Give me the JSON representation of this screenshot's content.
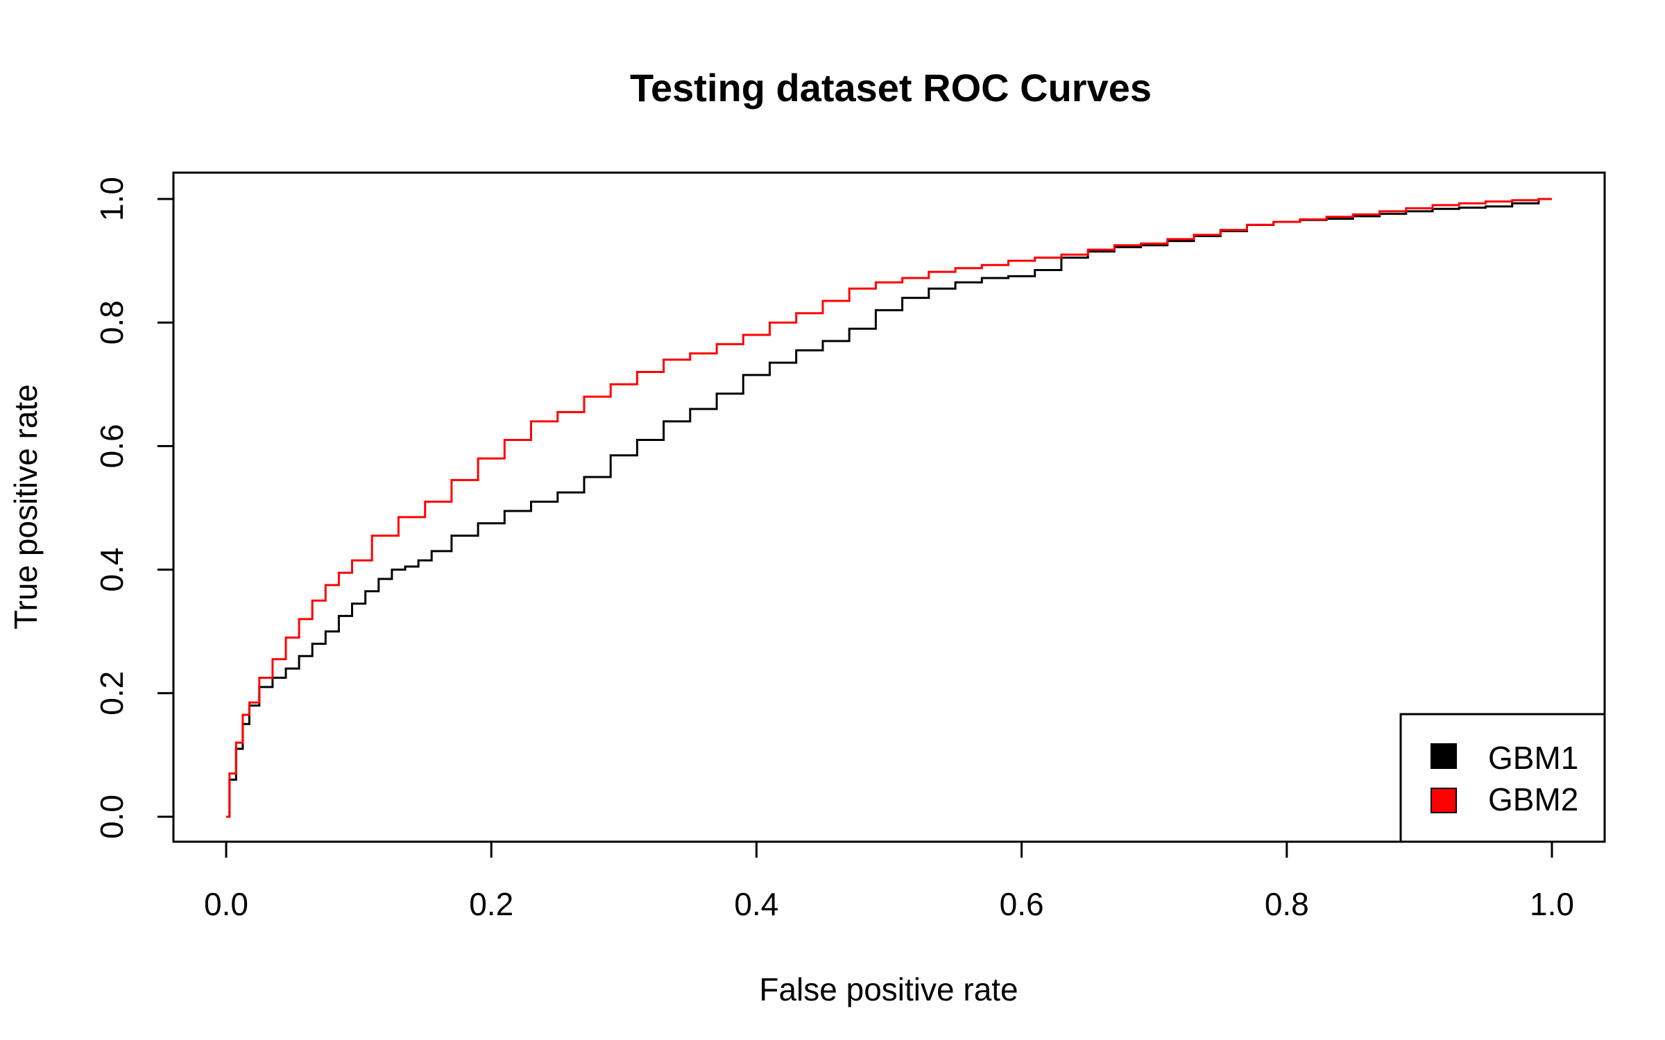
{
  "chart_data": {
    "type": "line",
    "title": "Testing dataset ROC Curves",
    "xlabel": "False positive rate",
    "ylabel": "True positive rate",
    "xlim": [
      0,
      1
    ],
    "ylim": [
      0,
      1
    ],
    "x_ticks": [
      "0.0",
      "0.2",
      "0.4",
      "0.6",
      "0.8",
      "1.0"
    ],
    "y_ticks": [
      "0.0",
      "0.2",
      "0.4",
      "0.6",
      "0.8",
      "1.0"
    ],
    "grid": false,
    "legend_position": "bottom-right",
    "series": [
      {
        "name": "GBM1",
        "color": "#000000",
        "x": [
          0,
          0.005,
          0.01,
          0.015,
          0.02,
          0.03,
          0.04,
          0.05,
          0.06,
          0.07,
          0.08,
          0.09,
          0.1,
          0.11,
          0.12,
          0.13,
          0.14,
          0.15,
          0.16,
          0.18,
          0.2,
          0.22,
          0.24,
          0.26,
          0.28,
          0.3,
          0.32,
          0.34,
          0.36,
          0.38,
          0.4,
          0.42,
          0.44,
          0.46,
          0.48,
          0.5,
          0.52,
          0.54,
          0.56,
          0.58,
          0.6,
          0.62,
          0.64,
          0.66,
          0.68,
          0.7,
          0.72,
          0.74,
          0.76,
          0.78,
          0.8,
          0.82,
          0.84,
          0.86,
          0.88,
          0.9,
          0.92,
          0.94,
          0.96,
          0.98,
          1.0
        ],
        "y": [
          0,
          0.06,
          0.11,
          0.15,
          0.18,
          0.21,
          0.225,
          0.24,
          0.26,
          0.28,
          0.3,
          0.325,
          0.345,
          0.365,
          0.385,
          0.4,
          0.405,
          0.415,
          0.43,
          0.455,
          0.475,
          0.495,
          0.51,
          0.525,
          0.55,
          0.585,
          0.61,
          0.64,
          0.66,
          0.685,
          0.715,
          0.735,
          0.755,
          0.77,
          0.79,
          0.82,
          0.84,
          0.855,
          0.865,
          0.872,
          0.875,
          0.885,
          0.905,
          0.915,
          0.922,
          0.925,
          0.932,
          0.94,
          0.948,
          0.958,
          0.963,
          0.966,
          0.968,
          0.972,
          0.976,
          0.98,
          0.984,
          0.986,
          0.988,
          0.993,
          1.0
        ]
      },
      {
        "name": "GBM2",
        "color": "#ff0000",
        "x": [
          0,
          0.005,
          0.01,
          0.015,
          0.02,
          0.03,
          0.04,
          0.05,
          0.06,
          0.07,
          0.08,
          0.09,
          0.1,
          0.12,
          0.14,
          0.16,
          0.18,
          0.2,
          0.22,
          0.24,
          0.26,
          0.28,
          0.3,
          0.32,
          0.34,
          0.36,
          0.38,
          0.4,
          0.42,
          0.44,
          0.46,
          0.48,
          0.5,
          0.52,
          0.54,
          0.56,
          0.58,
          0.6,
          0.62,
          0.64,
          0.66,
          0.68,
          0.7,
          0.72,
          0.74,
          0.76,
          0.78,
          0.8,
          0.82,
          0.84,
          0.86,
          0.88,
          0.9,
          0.92,
          0.94,
          0.96,
          0.98,
          1.0
        ],
        "y": [
          0,
          0.07,
          0.12,
          0.165,
          0.185,
          0.225,
          0.255,
          0.29,
          0.32,
          0.35,
          0.375,
          0.395,
          0.415,
          0.455,
          0.485,
          0.51,
          0.545,
          0.58,
          0.61,
          0.64,
          0.655,
          0.68,
          0.7,
          0.72,
          0.74,
          0.75,
          0.765,
          0.78,
          0.8,
          0.815,
          0.835,
          0.855,
          0.865,
          0.872,
          0.882,
          0.888,
          0.893,
          0.9,
          0.905,
          0.91,
          0.918,
          0.925,
          0.928,
          0.935,
          0.942,
          0.95,
          0.958,
          0.963,
          0.967,
          0.971,
          0.975,
          0.98,
          0.985,
          0.99,
          0.993,
          0.996,
          0.998,
          1.0
        ]
      }
    ]
  }
}
